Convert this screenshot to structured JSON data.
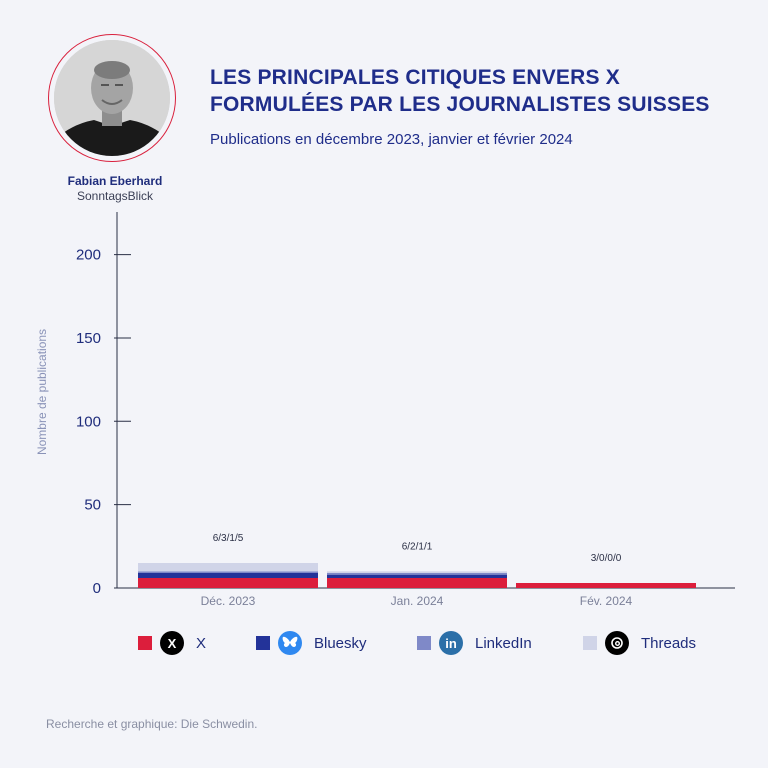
{
  "title": "LES PRINCIPALES CITIQUES ENVERS X FORMULÉES PAR LES JOURNALISTES SUISSES",
  "subtitle": "Publications en décembre 2023, janvier et février 2024",
  "person": {
    "name": "Fabian Eberhard",
    "outlet": "SonntagsBlick"
  },
  "footer": "Recherche et graphique: Die Schwedin.",
  "legend": [
    {
      "label": "X",
      "icon": "x-logo-icon",
      "color": "#dc1e3c"
    },
    {
      "label": "Bluesky",
      "icon": "bluesky-butterfly-icon",
      "color": "#233399"
    },
    {
      "label": "LinkedIn",
      "icon": "linkedin-logo-icon",
      "color": "#7f89c8"
    },
    {
      "label": "Threads",
      "icon": "threads-logo-icon",
      "color": "#d0d4e8"
    }
  ],
  "chart_data": {
    "type": "bar",
    "stacked": true,
    "categories": [
      "Déc. 2023",
      "Jan. 2024",
      "Fév. 2024"
    ],
    "series": [
      {
        "name": "X",
        "values": [
          6,
          6,
          3
        ],
        "color": "#dc1e3c"
      },
      {
        "name": "Bluesky",
        "values": [
          3,
          2,
          0
        ],
        "color": "#233399"
      },
      {
        "name": "LinkedIn",
        "values": [
          1,
          1,
          0
        ],
        "color": "#7f89c8"
      },
      {
        "name": "Threads",
        "values": [
          5,
          1,
          0
        ],
        "color": "#d0d4e8"
      }
    ],
    "bar_labels": [
      "6/3/1/5",
      "6/2/1/1",
      "3/0/0/0"
    ],
    "ylabel": "Nombre de publications",
    "yticks": [
      0,
      50,
      100,
      150,
      200
    ],
    "ylim": [
      0,
      225
    ],
    "grid": false
  }
}
